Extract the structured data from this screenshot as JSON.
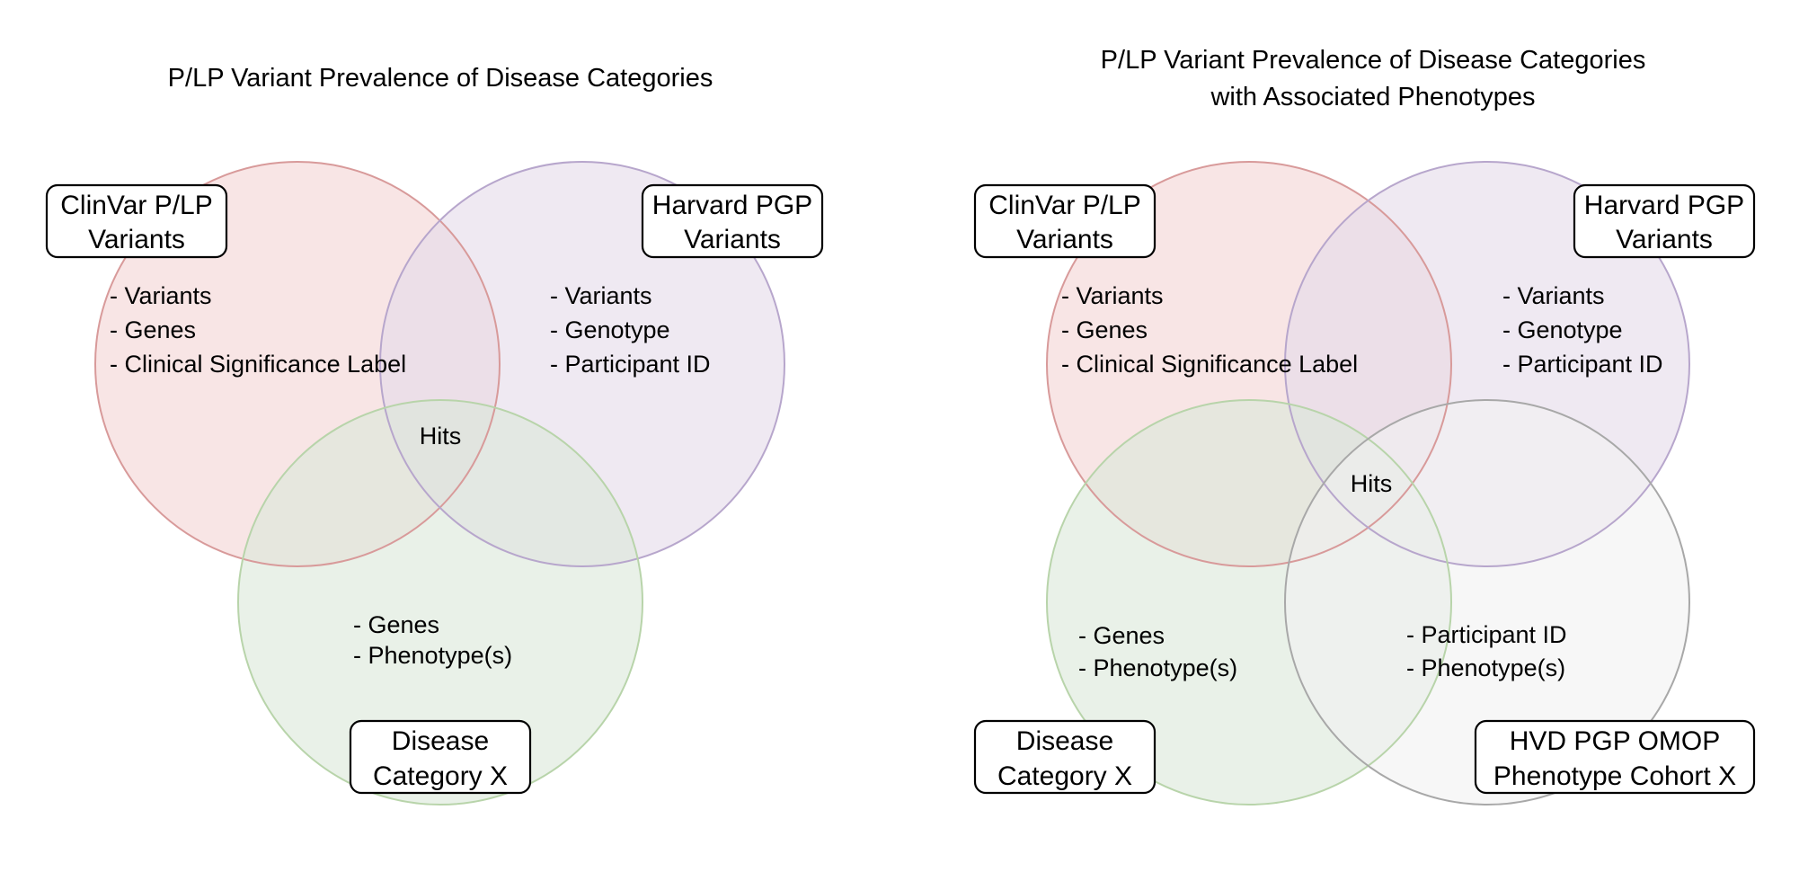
{
  "left_diagram": {
    "title": "P/LP Variant Prevalence of Disease Categories",
    "sets": [
      {
        "name": "ClinVar P/LP Variants",
        "label_lines": [
          "ClinVar P/LP",
          "Variants"
        ],
        "fill": "#f4d3d3",
        "stroke": "#d89a9a",
        "items": [
          "- Variants",
          "- Genes",
          "- Clinical Significance Label"
        ]
      },
      {
        "name": "Harvard PGP Variants",
        "label_lines": [
          "Harvard PGP",
          "Variants"
        ],
        "fill": "#e4dbe9",
        "stroke": "#b7a6cc",
        "items": [
          "- Variants",
          "- Genotype",
          "- Participant ID"
        ]
      },
      {
        "name": "Disease Category X",
        "label_lines": [
          "Disease",
          "Category X"
        ],
        "fill": "#dae8d8",
        "stroke": "#b8d4aa",
        "items": [
          "- Genes",
          "- Phenotype(s)"
        ]
      }
    ],
    "center_label": "Hits"
  },
  "right_diagram": {
    "title_lines": [
      "P/LP Variant Prevalence of Disease Categories",
      "with Associated Phenotypes"
    ],
    "sets": [
      {
        "name": "ClinVar P/LP Variants",
        "label_lines": [
          "ClinVar P/LP",
          "Variants"
        ],
        "fill": "#f4d3d3",
        "stroke": "#d89a9a",
        "items": [
          "- Variants",
          "- Genes",
          "- Clinical Significance Label"
        ]
      },
      {
        "name": "Harvard PGP Variants",
        "label_lines": [
          "Harvard PGP",
          "Variants"
        ],
        "fill": "#e4dbe9",
        "stroke": "#b7a6cc",
        "items": [
          "- Variants",
          "- Genotype",
          "- Participant ID"
        ]
      },
      {
        "name": "Disease Category X",
        "label_lines": [
          "Disease",
          "Category X"
        ],
        "fill": "#dae8d8",
        "stroke": "#b8d4aa",
        "items": [
          "- Genes",
          "- Phenotype(s)"
        ]
      },
      {
        "name": "HVD PGP OMOP Phenotype Cohort X",
        "label_lines": [
          "HVD PGP OMOP",
          "Phenotype Cohort X"
        ],
        "fill": "#f2f2f2",
        "stroke": "#a8a8a8",
        "items": [
          "- Participant ID",
          "- Phenotype(s)"
        ]
      }
    ],
    "center_label": "Hits"
  }
}
